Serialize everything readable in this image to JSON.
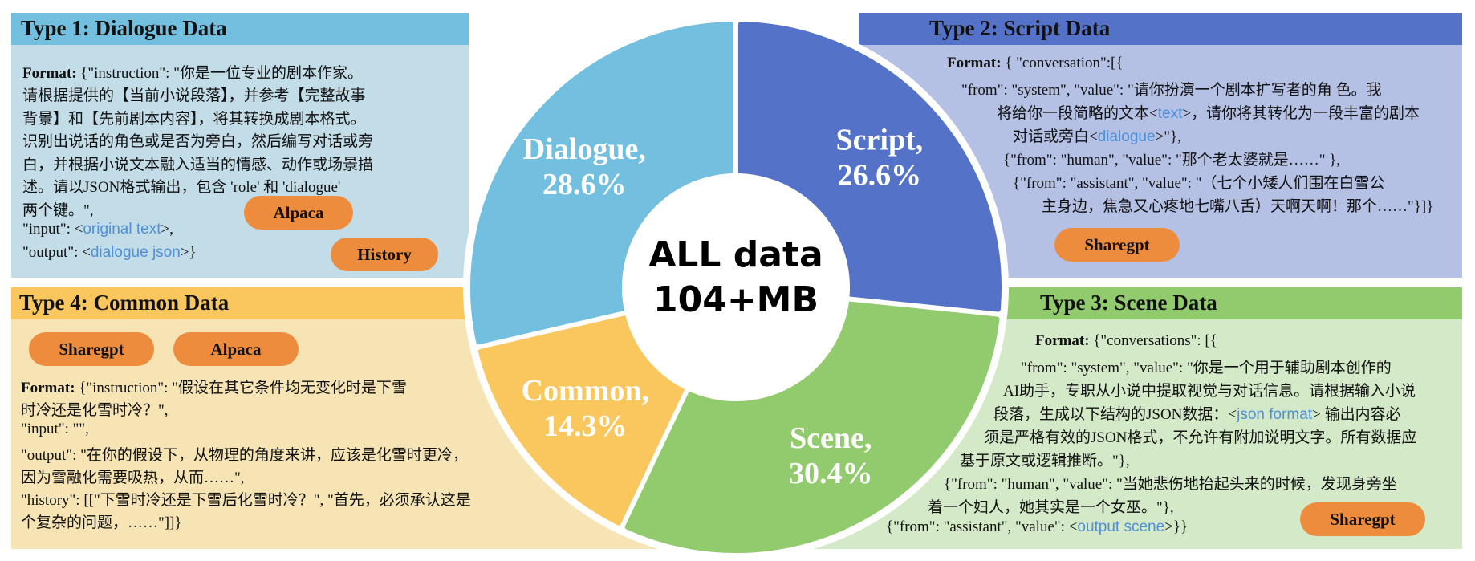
{
  "panels": {
    "dialogue": {
      "title": "Type 1:  Dialogue Data",
      "format_label": "Format:",
      "lines": [
        "{\"instruction\": \"你是一位专业的剧本作家。",
        "请根据提供的【当前小说段落】，并参考【完整故事",
        "背景】和【先前剧本内容】，将其转换成剧本格式。",
        "识别出说话的角色或是否为旁白，然后编写对话或旁",
        "白，并根据小说文本融入适当的情感、动作或场景描",
        "述。请以JSON格式输出，包含 'role' 和 'dialogue'",
        "两个键。\","
      ],
      "input_prefix": "\"input\": <",
      "input_placeholder": "original text",
      "input_suffix": ">,",
      "output_prefix": "\"output\": <",
      "output_placeholder": "dialogue json",
      "output_suffix": ">}",
      "badges": [
        "Alpaca",
        "History"
      ]
    },
    "script": {
      "title": "Type 2:  Script Data",
      "format_label": "Format:",
      "line1": "{ \"conversation\":[{",
      "line2": "\"from\": \"system\", \"value\": \"请你扮演一个剧本扩写者的角  色。我",
      "line3_prefix": "将给你一段简略的文本<",
      "line3_placeholder": "text",
      "line3_suffix": ">，请你将其转化为一段丰富的剧本",
      "line4_prefix": "对话或旁白<",
      "line4_placeholder": "dialogue",
      "line4_suffix": ">\"},",
      "line5": "{\"from\": \"human\", \"value\": \"那个老太婆就是……\" },",
      "line6": "{\"from\": \"assistant\", \"value\": \"（七个小矮人们围在白雪公",
      "line7": "主身边，焦急又心疼地七嘴八舌）天啊天啊！那个……\"}]}",
      "badges": [
        "Sharegpt"
      ]
    },
    "scene": {
      "title": "Type 3:  Scene Data",
      "format_label": "Format:",
      "line1": "{\"conversations\": [{",
      "line2": "\"from\": \"system\", \"value\": \"你是一个用于辅助剧本创作的",
      "line3": "AI助手，专职从小说中提取视觉与对话信息。请根据输入小说",
      "line4_prefix": "段落，生成以下结构的JSON数据：<",
      "line4_placeholder": "json format",
      "line4_suffix": "> 输出内容必",
      "line5": "须是严格有效的JSON格式，不允许有附加说明文字。所有数据应",
      "line6": "基于原文或逻辑推断。\"},",
      "line7": "{\"from\": \"human\", \"value\": \"当她悲伤地抬起头来的时候，发现身旁坐",
      "line8": "着一个妇人，她其实是一个女巫。\"},",
      "line9_prefix": "{\"from\": \"assistant\", \"value\": <",
      "line9_placeholder": "output scene",
      "line9_suffix": ">}}",
      "badges": [
        "Sharegpt"
      ]
    },
    "common": {
      "title": "Type 4:  Common Data",
      "badges": [
        "Sharegpt",
        "Alpaca"
      ],
      "format_label": "Format:",
      "line1": "{\"instruction\": \"假设在其它条件均无变化时是下雪",
      "line2": "时冷还是化雪时冷？\",",
      "line3": "\"input\": \"\",",
      "line4": "\"output\": \"在你的假设下，从物理的角度来讲，应该是化雪时更冷，",
      "line5": "因为雪融化需要吸热，从而……\",",
      "line6": "\"history\": [[\"下雪时冷还是下雪后化雪时冷？\", \"首先，必须承认这是",
      "line7": "个复杂的问题，……\"]]}"
    }
  },
  "chart_data": {
    "type": "pie",
    "center_label": [
      "ALL data",
      "104+MB"
    ],
    "categories": [
      "Dialogue",
      "Script",
      "Scene",
      "Common"
    ],
    "values": [
      28.6,
      26.6,
      30.4,
      14.3
    ],
    "labels": [
      [
        "Dialogue,",
        "28.6%"
      ],
      [
        "Script,",
        "26.6%"
      ],
      [
        "Scene,",
        "30.4%"
      ],
      [
        "Common,",
        "14.3%"
      ]
    ],
    "colors": [
      "#72bfe0",
      "#5472c8",
      "#92cb6e",
      "#fac75e"
    ]
  }
}
